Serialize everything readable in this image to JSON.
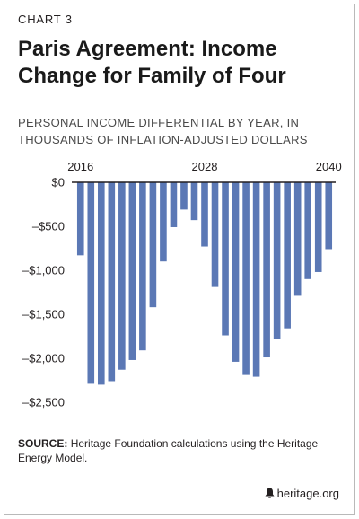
{
  "header": {
    "chart_label": "CHART 3",
    "title": "Paris Agreement: Income Change for Family of Four",
    "subtitle": "PERSONAL INCOME DIFFERENTIAL BY YEAR, IN THOUSANDS OF INFLATION-ADJUSTED DOLLARS"
  },
  "source": {
    "label": "SOURCE:",
    "text": "Heritage Foundation calculations using the Heritage Energy Model."
  },
  "footer": {
    "brand": "heritage.org",
    "icon": "bell-icon"
  },
  "colors": {
    "bar": "#5b78b5",
    "axis": "#231f20",
    "text": "#231f20",
    "subtitle": "#4a4a4a"
  },
  "chart_data": {
    "type": "bar",
    "title": "Paris Agreement: Income Change for Family of Four",
    "subtitle": "PERSONAL INCOME DIFFERENTIAL BY YEAR, IN THOUSANDS OF INFLATION-ADJUSTED DOLLARS",
    "categories": [
      2016,
      2017,
      2018,
      2019,
      2020,
      2021,
      2022,
      2023,
      2024,
      2025,
      2026,
      2027,
      2028,
      2029,
      2030,
      2031,
      2032,
      2033,
      2034,
      2035,
      2036,
      2037,
      2038,
      2039,
      2040
    ],
    "values": [
      -830,
      -2290,
      -2300,
      -2260,
      -2130,
      -2020,
      -1910,
      -1420,
      -900,
      -510,
      -310,
      -430,
      -730,
      -1190,
      -1740,
      -2040,
      -2190,
      -2210,
      -1990,
      -1780,
      -1660,
      -1290,
      -1100,
      -1020,
      -760
    ],
    "x_tick_labels": [
      "2016",
      "2028",
      "2040"
    ],
    "y_ticks": [
      0,
      -500,
      -1000,
      -1500,
      -2000,
      -2500
    ],
    "y_tick_labels": [
      "$0",
      "–$500",
      "–$1,000",
      "–$1,500",
      "–$2,000",
      "–$2,500"
    ],
    "ylim": [
      -2500,
      0
    ],
    "xlabel": "",
    "ylabel": "",
    "grid": false,
    "legend": "none",
    "x_axis_position": "top"
  }
}
